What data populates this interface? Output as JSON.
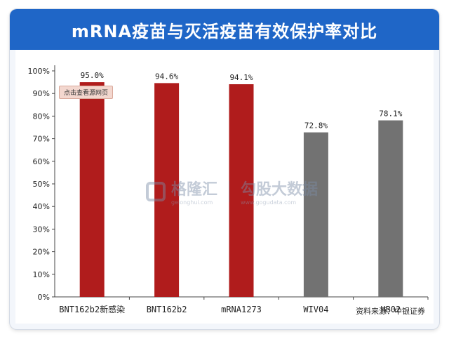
{
  "chart_data": {
    "type": "bar",
    "title": "mRNA疫苗与灭活疫苗有效保护率对比",
    "categories": [
      "BNT162b2新感染",
      "BNT162b2",
      "mRNA1273",
      "WIV04",
      "HB02"
    ],
    "values": [
      95.0,
      94.6,
      94.1,
      72.8,
      78.1
    ],
    "data_labels": [
      "95.0%",
      "94.6%",
      "94.1%",
      "72.8%",
      "78.1%"
    ],
    "bar_colors": [
      "#b01c1c",
      "#b01c1c",
      "#b01c1c",
      "#727272",
      "#727272"
    ],
    "ylim": [
      0,
      100
    ],
    "yticks": [
      "0%",
      "10%",
      "20%",
      "30%",
      "40%",
      "50%",
      "60%",
      "70%",
      "80%",
      "90%",
      "100%"
    ],
    "grid": false
  },
  "source_text": "资料来源：中银证券",
  "overlay_badge": "点击查看源网页",
  "watermark": {
    "brand1": "格隆汇",
    "brand1_sub": "gelonghui.com",
    "brand2": "勾股大数据",
    "brand2_sub": "www.gogudata.com"
  },
  "colors": {
    "title_bg": "#1f66c7",
    "frame_bg": "#f3f6fb"
  }
}
